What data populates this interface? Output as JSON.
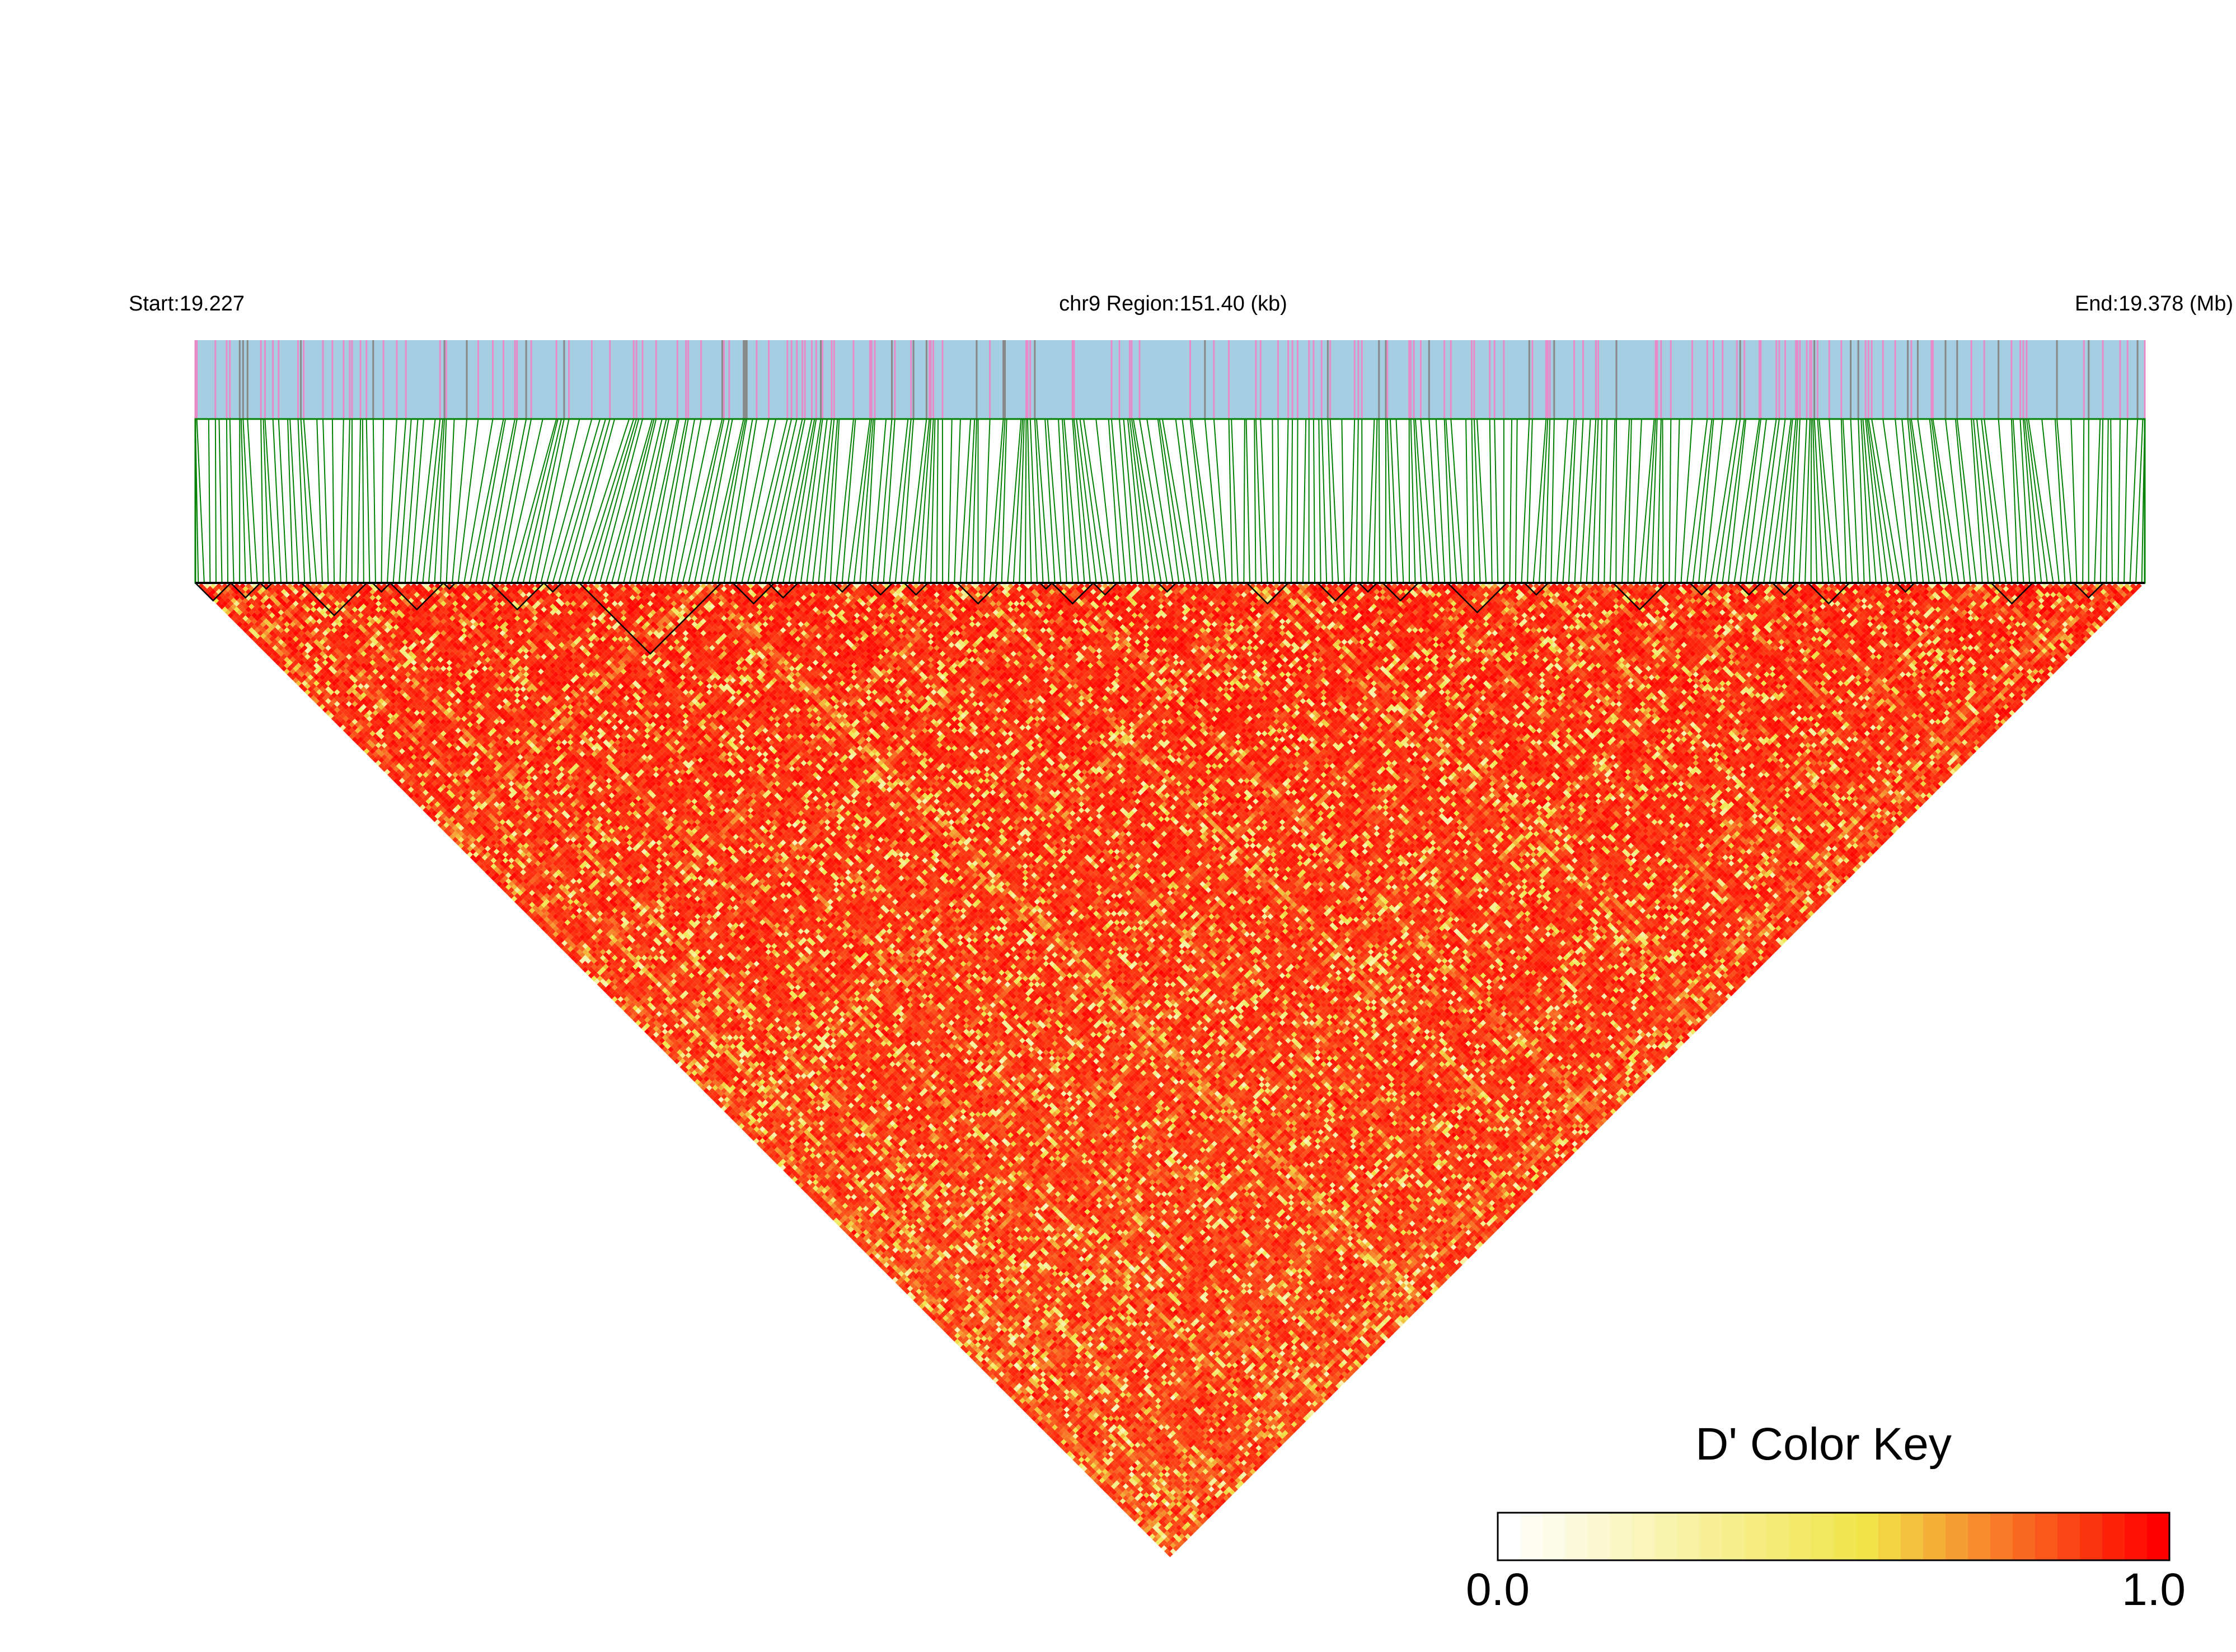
{
  "chart_data": {
    "type": "heatmap",
    "subtype": "LD block triangle plot",
    "header": {
      "start_label": "Start:19.227",
      "region_label": "chr9 Region:151.40 (kb)",
      "end_label": "End:19.378 (Mb)"
    },
    "region": {
      "chromosome": "chr9",
      "start_mb": 19.227,
      "end_mb": 19.378,
      "length_kb": 151.4
    },
    "snp_count_estimate": 330,
    "haplotype_blocks_snp_index_ranges": [
      [
        0,
        12
      ],
      [
        12,
        22
      ],
      [
        22,
        26
      ],
      [
        36,
        58
      ],
      [
        60,
        66
      ],
      [
        66,
        84
      ],
      [
        84,
        88
      ],
      [
        100,
        118
      ],
      [
        118,
        124
      ],
      [
        130,
        178
      ],
      [
        182,
        196
      ],
      [
        194,
        204
      ],
      [
        216,
        222
      ],
      [
        228,
        236
      ],
      [
        240,
        248
      ],
      [
        258,
        272
      ],
      [
        286,
        290
      ],
      [
        290,
        304
      ],
      [
        304,
        312
      ],
      [
        326,
        332
      ],
      [
        356,
        370
      ],
      [
        380,
        392
      ],
      [
        394,
        400
      ],
      [
        402,
        414
      ],
      [
        424,
        444
      ],
      [
        450,
        458
      ],
      [
        480,
        498
      ],
      [
        506,
        514
      ],
      [
        522,
        530
      ],
      [
        534,
        542
      ],
      [
        546,
        560
      ],
      [
        576,
        582
      ],
      [
        608,
        622
      ],
      [
        636,
        646
      ]
    ],
    "color_key": {
      "title": "D' Color Key",
      "min_label": "0.0",
      "max_label": "1.0",
      "range": [
        0,
        1
      ],
      "colors": [
        "#ffffff",
        "#f0e54a",
        "#ff0000"
      ]
    },
    "colors": {
      "track_background": "#a6cee3",
      "snp_tick_a": "#e68ac8",
      "snp_tick_b": "#888888",
      "connector_lines": "#008000",
      "block_outline": "#000000"
    }
  }
}
